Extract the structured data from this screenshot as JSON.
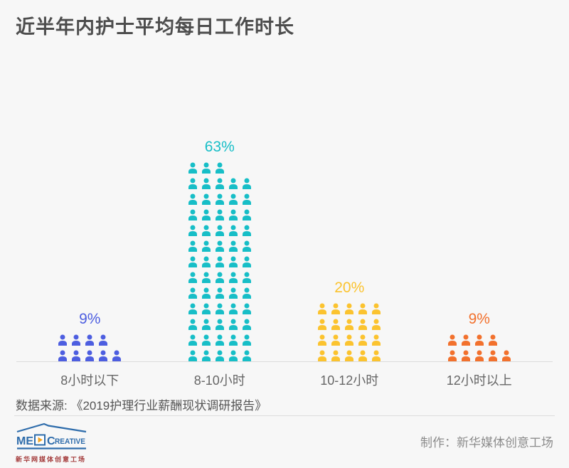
{
  "title": "近半年内护士平均每日工作时长",
  "chart_data": {
    "type": "pictogram-bar",
    "title": "近半年内护士平均每日工作时长",
    "categories": [
      "8小时以下",
      "8-10小时",
      "10-12小时",
      "12小时以上"
    ],
    "values": [
      9,
      63,
      20,
      9
    ],
    "value_labels": [
      "9%",
      "63%",
      "20%",
      "9%"
    ],
    "colors": [
      "#4d5ee0",
      "#17bec7",
      "#fbc32f",
      "#f2712d"
    ],
    "icon": "person",
    "icon_unit_value": 1,
    "icons_per_row": 5,
    "unit": "percent",
    "legend": "none",
    "grid": "off",
    "baseline_color": "#dcdcdc"
  },
  "source_text": "数据来源: 《2019护理行业薪酬现状调研报告》",
  "footer": {
    "credit": "制作：新华媒体创意工场",
    "logo": {
      "me": "ME",
      "c": "C",
      "reative": "REATIVE",
      "subtext": "新华网媒体创意工场"
    }
  }
}
